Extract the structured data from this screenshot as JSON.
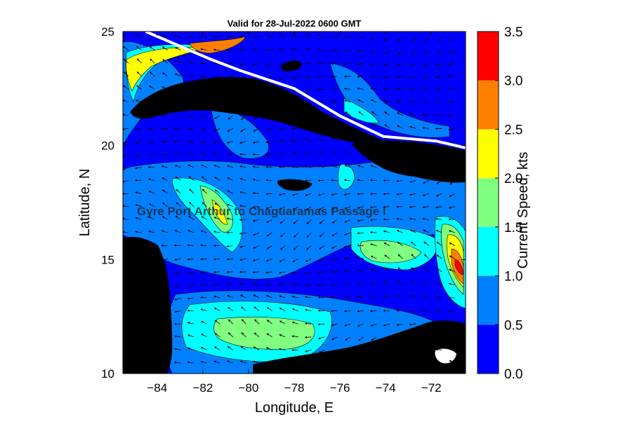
{
  "figure": {
    "title": "Valid for 28-Jul-2022 0600 GMT",
    "overlay_label": "Gyre Port Arthur to Chaguaramas Passage I"
  },
  "map": {
    "x_label": "Longitude, E",
    "y_label": "Latitude, N",
    "x_range": [
      -85.5,
      -70.5
    ],
    "y_range": [
      10,
      25
    ],
    "x_ticks": [
      -84,
      -82,
      -80,
      -78,
      -76,
      -74,
      -72
    ],
    "y_ticks": [
      10,
      15,
      20,
      25
    ],
    "land_color": "#000000",
    "ocean_base_color": "#0000ff",
    "route_color": "#ffffff",
    "route": [
      [
        -84.5,
        25.0
      ],
      [
        -81.7,
        23.8
      ],
      [
        -80.4,
        23.3
      ],
      [
        -78.0,
        22.5
      ],
      [
        -76.0,
        21.3
      ],
      [
        -74.1,
        20.4
      ],
      [
        -71.8,
        20.2
      ],
      [
        -70.5,
        19.9
      ]
    ]
  },
  "colorbar": {
    "label": "Current Speed, kts",
    "tick_labels": [
      "0.0",
      "0.5",
      "1.0",
      "1.5",
      "2.0",
      "2.5",
      "3.0",
      "3.5"
    ],
    "bins": [
      {
        "min": 0.0,
        "max": 0.5,
        "color": "#0000ff"
      },
      {
        "min": 0.5,
        "max": 1.0,
        "color": "#0080ff"
      },
      {
        "min": 1.0,
        "max": 1.5,
        "color": "#00ffff"
      },
      {
        "min": 1.5,
        "max": 2.0,
        "color": "#80ff80"
      },
      {
        "min": 2.0,
        "max": 2.5,
        "color": "#ffff00"
      },
      {
        "min": 2.5,
        "max": 3.0,
        "color": "#ff8000"
      },
      {
        "min": 3.0,
        "max": 3.5,
        "color": "#ff0000"
      }
    ]
  }
}
